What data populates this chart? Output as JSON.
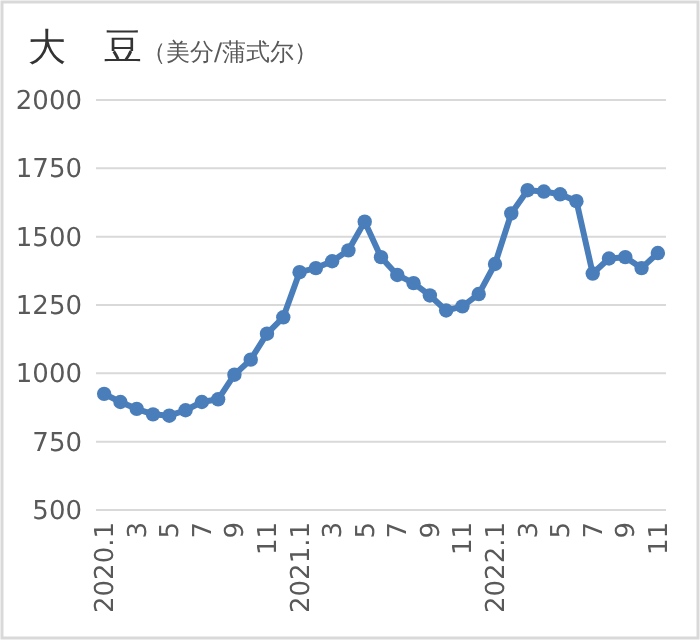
{
  "chart_data": {
    "type": "line",
    "title": "大　豆",
    "subtitle": "（美分/蒲式尔）",
    "categories": [
      "2020.1",
      null,
      "3",
      null,
      "5",
      null,
      "7",
      null,
      "9",
      null,
      "11",
      null,
      "2021.1",
      null,
      "3",
      null,
      "5",
      null,
      "7",
      null,
      "9",
      null,
      "11",
      null,
      "2022.1",
      null,
      "3",
      null,
      "5",
      null,
      "7",
      null,
      "9",
      null,
      "11"
    ],
    "series": [
      {
        "color": "#4a7ebb",
        "values": [
          925,
          895,
          870,
          850,
          845,
          865,
          895,
          905,
          995,
          1050,
          1145,
          1205,
          1370,
          1385,
          1410,
          1450,
          1555,
          1425,
          1360,
          1330,
          1285,
          1230,
          1245,
          1290,
          1400,
          1585,
          1670,
          1665,
          1655,
          1630,
          1365,
          1420,
          1425,
          1385,
          1440
        ]
      }
    ],
    "ylim": [
      500,
      2000
    ],
    "yticks": [
      500,
      750,
      1000,
      1250,
      1500,
      1750,
      2000
    ],
    "grid": "y",
    "marker": "circle",
    "line_style": "solid"
  }
}
